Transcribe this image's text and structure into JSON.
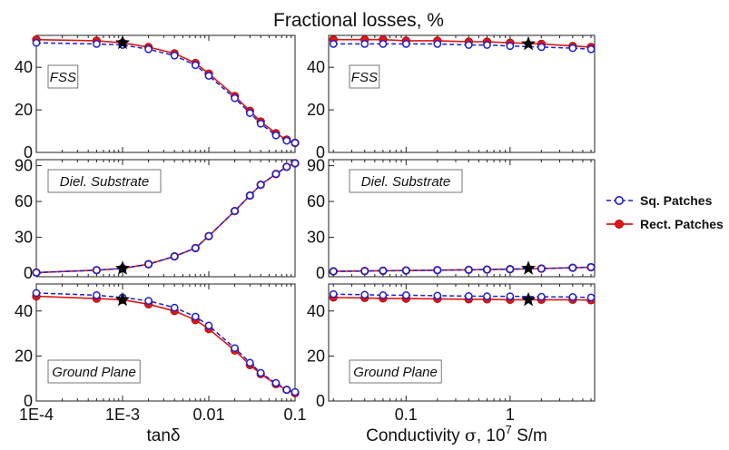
{
  "figure": {
    "title": "Fractional losses, %",
    "left_xlabel": "tanδ",
    "right_xlabel_pre": "Conductivity ",
    "right_xlabel_sigma": "σ",
    "right_xlabel_mid": ", 10",
    "right_xlabel_sup": "7",
    "right_xlabel_post": " S/m",
    "legend": {
      "sq": "Sq. Patches",
      "rect": "Rect. Patches"
    },
    "panel_labels": {
      "fss": "FSS",
      "diel": "Diel. Substrate",
      "gp": "Ground Plane"
    },
    "colors": {
      "sq": "#1f1fcf",
      "rect": "#e01616",
      "marker": "#000000"
    }
  },
  "chart_data": [
    {
      "id": "fss-tan",
      "type": "line",
      "panel_label": "FSS",
      "xscale": "log",
      "xlim": [
        0.0001,
        0.1
      ],
      "xticks": [
        0.0001,
        0.001,
        0.01,
        0.1
      ],
      "xtick_labels": [
        "1E-4",
        "1E-3",
        "0.01",
        "0.1"
      ],
      "ylim": [
        0,
        55
      ],
      "yticks": [
        0,
        20,
        40
      ],
      "x": [
        0.0001,
        0.0005,
        0.001,
        0.002,
        0.004,
        0.007,
        0.01,
        0.02,
        0.03,
        0.04,
        0.06,
        0.08,
        0.1
      ],
      "series": [
        {
          "name": "Sq. Patches",
          "style": "dashed-open",
          "values": [
            51.5,
            51,
            50.5,
            48.5,
            45.5,
            41,
            36,
            25.5,
            18.5,
            13.5,
            8,
            5.5,
            4.5
          ]
        },
        {
          "name": "Rect. Patches",
          "style": "solid-filled",
          "values": [
            53,
            52.5,
            51.5,
            49.5,
            46.5,
            42,
            37,
            26.5,
            19.5,
            14.5,
            9,
            6,
            4.5
          ]
        }
      ],
      "star": {
        "x": 0.001,
        "y": 51.5
      }
    },
    {
      "id": "fss-sigma",
      "type": "line",
      "panel_label": "FSS",
      "xscale": "log",
      "xlim": [
        0.018,
        6.5
      ],
      "xticks": [
        0.1,
        1
      ],
      "xtick_labels": [
        "0.1",
        "1"
      ],
      "ylim": [
        0,
        55
      ],
      "yticks": [
        0,
        20,
        40
      ],
      "x": [
        0.02,
        0.04,
        0.06,
        0.1,
        0.2,
        0.4,
        0.6,
        1,
        2,
        4,
        6
      ],
      "series": [
        {
          "name": "Sq. Patches",
          "style": "dashed-open",
          "values": [
            51,
            51,
            51,
            51,
            51,
            50.5,
            50.5,
            50,
            49.5,
            49,
            48.5
          ]
        },
        {
          "name": "Rect. Patches",
          "style": "solid-filled",
          "values": [
            53,
            53,
            53,
            52.5,
            52.5,
            52,
            52,
            51.5,
            51,
            50,
            49.5
          ]
        }
      ],
      "star": {
        "x": 1.5,
        "y": 51
      }
    },
    {
      "id": "diel-tan",
      "type": "line",
      "panel_label": "Diel. Substrate",
      "xscale": "log",
      "xlim": [
        0.0001,
        0.1
      ],
      "xticks": [
        0.0001,
        0.001,
        0.01,
        0.1
      ],
      "xtick_labels": [
        "1E-4",
        "1E-3",
        "0.01",
        "0.1"
      ],
      "ylim": [
        -3,
        95
      ],
      "yticks": [
        0,
        30,
        60,
        90
      ],
      "x": [
        0.0001,
        0.0005,
        0.001,
        0.002,
        0.004,
        0.007,
        0.01,
        0.02,
        0.03,
        0.04,
        0.06,
        0.08,
        0.1
      ],
      "series": [
        {
          "name": "Sq. Patches",
          "style": "dashed-open",
          "values": [
            0.5,
            2.5,
            4,
            7.5,
            14,
            21,
            31,
            52,
            65,
            74,
            83,
            89,
            92
          ]
        },
        {
          "name": "Rect. Patches",
          "style": "solid-filled",
          "values": [
            0.5,
            2.5,
            4,
            7.5,
            14,
            21,
            31,
            52,
            65,
            74,
            83,
            89,
            92
          ]
        }
      ],
      "star": {
        "x": 0.001,
        "y": 4
      }
    },
    {
      "id": "diel-sigma",
      "type": "line",
      "panel_label": "Diel. Substrate",
      "xscale": "log",
      "xlim": [
        0.018,
        6.5
      ],
      "xticks": [
        0.1,
        1
      ],
      "xtick_labels": [
        "0.1",
        "1"
      ],
      "ylim": [
        -3,
        95
      ],
      "yticks": [
        0,
        30,
        60,
        90
      ],
      "x": [
        0.02,
        0.04,
        0.06,
        0.1,
        0.2,
        0.4,
        0.6,
        1,
        2,
        4,
        6
      ],
      "series": [
        {
          "name": "Sq. Patches",
          "style": "dashed-open",
          "values": [
            1.5,
            1.8,
            2,
            2.2,
            2.5,
            2.8,
            3,
            3.3,
            3.8,
            4.5,
            5
          ]
        },
        {
          "name": "Rect. Patches",
          "style": "solid-filled",
          "values": [
            1.5,
            1.8,
            2,
            2.2,
            2.5,
            2.8,
            3,
            3.3,
            3.8,
            4.5,
            5
          ]
        }
      ],
      "star": {
        "x": 1.5,
        "y": 4
      }
    },
    {
      "id": "gp-tan",
      "type": "line",
      "panel_label": "Ground Plane",
      "xscale": "log",
      "xlim": [
        0.0001,
        0.1
      ],
      "xticks": [
        0.0001,
        0.001,
        0.01,
        0.1
      ],
      "xtick_labels": [
        "1E-4",
        "1E-3",
        "0.01",
        "0.1"
      ],
      "ylim": [
        0,
        52
      ],
      "yticks": [
        0,
        20,
        40
      ],
      "x": [
        0.0001,
        0.0005,
        0.001,
        0.002,
        0.004,
        0.007,
        0.01,
        0.02,
        0.03,
        0.04,
        0.06,
        0.08,
        0.1
      ],
      "series": [
        {
          "name": "Sq. Patches",
          "style": "dashed-open",
          "values": [
            48,
            47,
            46,
            44.5,
            41.5,
            37.5,
            33.5,
            23.5,
            17,
            12.5,
            8,
            5,
            4
          ]
        },
        {
          "name": "Rect. Patches",
          "style": "solid-filled",
          "values": [
            46.5,
            45.5,
            45,
            43,
            40,
            36,
            32,
            22.5,
            16,
            12,
            7.5,
            5,
            3.5
          ]
        }
      ],
      "star": {
        "x": 0.001,
        "y": 45
      }
    },
    {
      "id": "gp-sigma",
      "type": "line",
      "panel_label": "Ground Plane",
      "xscale": "log",
      "xlim": [
        0.018,
        6.5
      ],
      "xticks": [
        0.1,
        1
      ],
      "xtick_labels": [
        "0.1",
        "1"
      ],
      "ylim": [
        0,
        52
      ],
      "yticks": [
        0,
        20,
        40
      ],
      "x": [
        0.02,
        0.04,
        0.06,
        0.1,
        0.2,
        0.4,
        0.6,
        1,
        2,
        4,
        6
      ],
      "series": [
        {
          "name": "Sq. Patches",
          "style": "dashed-open",
          "values": [
            47.5,
            47.2,
            47,
            47,
            46.8,
            46.6,
            46.5,
            46.5,
            46.3,
            46.2,
            46
          ]
        },
        {
          "name": "Rect. Patches",
          "style": "solid-filled",
          "values": [
            46,
            45.8,
            45.6,
            45.5,
            45.4,
            45.2,
            45.2,
            45,
            45,
            45,
            44.8
          ]
        }
      ],
      "star": {
        "x": 1.5,
        "y": 45
      }
    }
  ]
}
